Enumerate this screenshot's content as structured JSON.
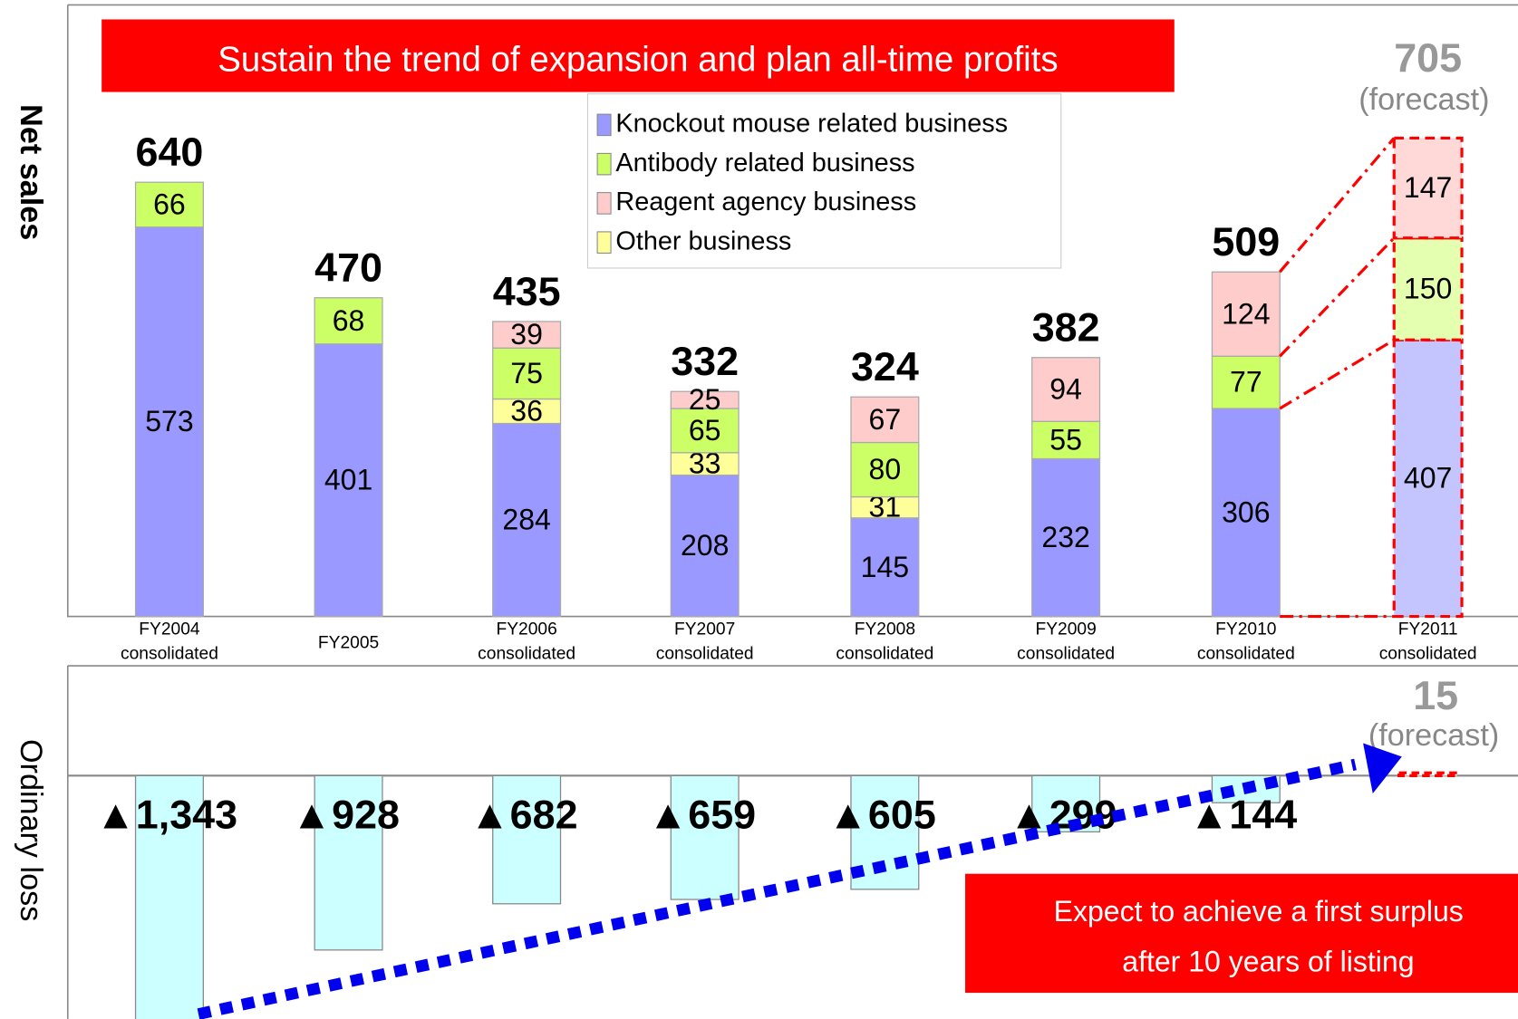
{
  "chart_data": [
    {
      "type": "stacked_bar",
      "title": "Sustain the trend of expansion and plan all-time profits",
      "ylabel": "Net sales",
      "categories": [
        [
          "FY2004",
          "consolidated"
        ],
        [
          "FY2005"
        ],
        [
          "FY2006",
          "consolidated"
        ],
        [
          "FY2007",
          "consolidated"
        ],
        [
          "FY2008",
          "consolidated"
        ],
        [
          "FY2009",
          "consolidated"
        ],
        [
          "FY2010",
          "consolidated"
        ],
        [
          "FY2011",
          "consolidated"
        ]
      ],
      "series": [
        {
          "name": "Knockout mouse related business",
          "color": "#9999ff",
          "values": [
            573,
            401,
            284,
            208,
            145,
            232,
            306,
            407
          ]
        },
        {
          "name": "Antibody related business",
          "color": "#ccff66",
          "values": [
            66,
            68,
            75,
            65,
            80,
            55,
            77,
            150
          ]
        },
        {
          "name": "Reagent agency business",
          "color": "#ffcccc",
          "values": [
            null,
            null,
            39,
            25,
            67,
            94,
            124,
            147
          ]
        },
        {
          "name": "Other business",
          "color": "#ffff99",
          "values": [
            null,
            null,
            36,
            33,
            31,
            null,
            null,
            null
          ]
        }
      ],
      "totals": [
        640,
        470,
        435,
        332,
        324,
        382,
        509,
        705
      ],
      "forecast_label": "(forecast)",
      "ylim": [
        0,
        900
      ]
    },
    {
      "type": "bar",
      "ylabel": "Ordinary loss",
      "values": [
        -1343,
        -928,
        -682,
        -659,
        -605,
        -299,
        -144,
        15
      ],
      "value_labels": [
        "▲1,343",
        "▲928",
        "▲682",
        "▲659",
        "▲605",
        "▲299",
        "▲144",
        "15"
      ],
      "color": "#ccffff",
      "forecast_label": "(forecast)",
      "annotation": [
        "Expect to achieve a first surplus",
        "after 10 years of listing"
      ],
      "ylim": [
        -1295,
        585
      ]
    }
  ]
}
